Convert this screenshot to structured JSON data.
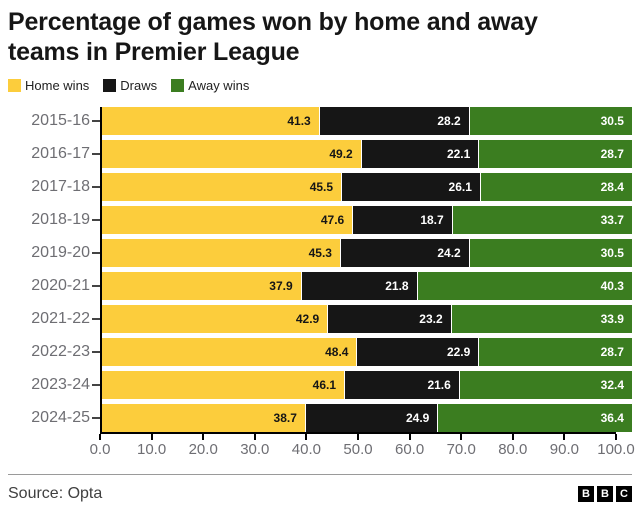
{
  "title": "Percentage of games won by home and away teams in Premier League",
  "chart_data": {
    "type": "bar",
    "stacked": true,
    "orientation": "horizontal",
    "title": "Percentage of games won by home and away teams in Premier League",
    "categories": [
      "2015-16",
      "2016-17",
      "2017-18",
      "2018-19",
      "2019-20",
      "2020-21",
      "2021-22",
      "2022-23",
      "2023-24",
      "2024-25"
    ],
    "series": [
      {
        "name": "Home wins",
        "color": "#fccd3c",
        "label_color": "#161616",
        "values": [
          41.3,
          49.2,
          45.5,
          47.6,
          45.3,
          37.9,
          42.9,
          48.4,
          46.1,
          38.7
        ]
      },
      {
        "name": "Draws",
        "color": "#161616",
        "label_color": "#ffffff",
        "values": [
          28.2,
          22.1,
          26.1,
          18.7,
          24.2,
          21.8,
          23.2,
          22.9,
          21.6,
          24.9
        ]
      },
      {
        "name": "Away wins",
        "color": "#3b7d20",
        "label_color": "#ffffff",
        "values": [
          30.5,
          28.7,
          28.4,
          33.7,
          30.5,
          40.3,
          33.9,
          28.7,
          32.4,
          36.4
        ]
      }
    ],
    "xlim": [
      0,
      100
    ],
    "x_tick_labels": [
      "0.0",
      "10.0",
      "20.0",
      "30.0",
      "40.0",
      "50.0",
      "60.0",
      "70.0",
      "80.0",
      "90.0",
      "100.0"
    ],
    "grid": false,
    "legend_position": "top-left"
  },
  "footer": {
    "source": "Source: Opta",
    "logo_letters": [
      "B",
      "B",
      "C"
    ]
  }
}
